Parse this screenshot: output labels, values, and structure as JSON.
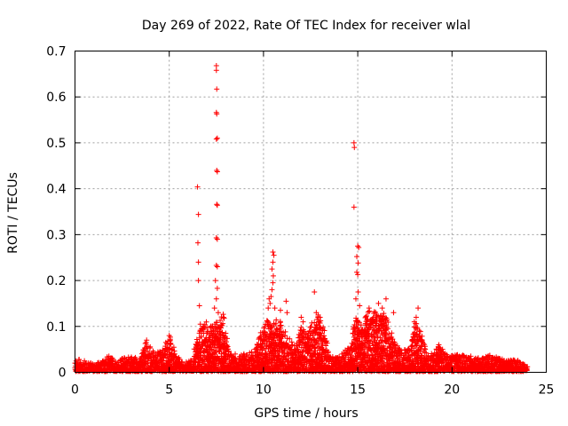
{
  "chart_data": {
    "type": "scatter",
    "title": "Day 269 of 2022, Rate Of TEC Index for receiver wlal",
    "xlabel": "GPS time / hours",
    "ylabel": "ROTI / TECUs",
    "xlim": [
      0,
      25
    ],
    "ylim": [
      0,
      0.7
    ],
    "x_ticks": [
      0,
      5,
      10,
      15,
      20,
      25
    ],
    "x_tick_labels": [
      "0",
      "5",
      "10",
      "15",
      "20",
      "25"
    ],
    "y_ticks": [
      0,
      0.1,
      0.2,
      0.3,
      0.4,
      0.5,
      0.6,
      0.7
    ],
    "y_tick_labels": [
      "0",
      "0.1",
      "0.2",
      "0.3",
      "0.4",
      "0.5",
      "0.6",
      "0.7"
    ],
    "grid": true,
    "marker": "+",
    "color": "#ff0000",
    "series": [
      {
        "name": "ROTI",
        "points": [
          [
            7.5,
            0.668
          ],
          [
            7.5,
            0.658
          ],
          [
            7.52,
            0.617
          ],
          [
            7.5,
            0.566
          ],
          [
            7.52,
            0.563
          ],
          [
            7.55,
            0.51
          ],
          [
            7.5,
            0.508
          ],
          [
            7.52,
            0.44
          ],
          [
            7.55,
            0.437
          ],
          [
            7.52,
            0.366
          ],
          [
            7.55,
            0.364
          ],
          [
            7.5,
            0.293
          ],
          [
            7.55,
            0.29
          ],
          [
            7.5,
            0.233
          ],
          [
            7.55,
            0.23
          ],
          [
            7.45,
            0.2
          ],
          [
            7.55,
            0.183
          ],
          [
            7.5,
            0.16
          ],
          [
            7.4,
            0.14
          ],
          [
            7.6,
            0.13
          ],
          [
            6.5,
            0.404
          ],
          [
            6.55,
            0.344
          ],
          [
            6.52,
            0.282
          ],
          [
            6.55,
            0.24
          ],
          [
            6.55,
            0.2
          ],
          [
            6.6,
            0.145
          ],
          [
            6.65,
            0.105
          ],
          [
            14.8,
            0.5
          ],
          [
            14.82,
            0.49
          ],
          [
            14.8,
            0.36
          ],
          [
            15.0,
            0.275
          ],
          [
            15.05,
            0.272
          ],
          [
            14.95,
            0.252
          ],
          [
            15.02,
            0.238
          ],
          [
            14.95,
            0.218
          ],
          [
            15.0,
            0.213
          ],
          [
            15.02,
            0.175
          ],
          [
            14.9,
            0.16
          ],
          [
            15.1,
            0.145
          ],
          [
            10.5,
            0.262
          ],
          [
            10.55,
            0.255
          ],
          [
            10.5,
            0.24
          ],
          [
            10.45,
            0.225
          ],
          [
            10.52,
            0.21
          ],
          [
            10.5,
            0.195
          ],
          [
            10.45,
            0.18
          ],
          [
            10.4,
            0.165
          ],
          [
            10.3,
            0.16
          ],
          [
            10.35,
            0.15
          ],
          [
            10.25,
            0.14
          ],
          [
            10.6,
            0.14
          ],
          [
            10.9,
            0.135
          ],
          [
            11.2,
            0.155
          ],
          [
            11.25,
            0.13
          ],
          [
            12.0,
            0.12
          ],
          [
            12.1,
            0.11
          ],
          [
            12.7,
            0.175
          ],
          [
            12.8,
            0.13
          ],
          [
            12.9,
            0.125
          ],
          [
            13.0,
            0.12
          ],
          [
            16.5,
            0.16
          ],
          [
            16.9,
            0.13
          ],
          [
            16.3,
            0.14
          ],
          [
            16.1,
            0.15
          ],
          [
            15.6,
            0.14
          ],
          [
            18.2,
            0.14
          ],
          [
            18.1,
            0.12
          ],
          [
            18.0,
            0.11
          ],
          [
            3.8,
            0.07
          ],
          [
            5.0,
            0.08
          ],
          [
            5.05,
            0.072
          ],
          [
            2.5,
            0.03
          ],
          [
            8.5,
            0.04
          ],
          [
            9.0,
            0.035
          ],
          [
            19.3,
            0.06
          ],
          [
            19.5,
            0.05
          ],
          [
            21.0,
            0.035
          ],
          [
            22.5,
            0.03
          ],
          [
            23.5,
            0.025
          ],
          [
            24.0,
            0.012
          ],
          [
            0.1,
            0.02
          ],
          [
            0.5,
            0.025
          ],
          [
            1.2,
            0.02
          ],
          [
            1.8,
            0.035
          ]
        ],
        "envelope": [
          [
            0.0,
            0.02
          ],
          [
            0.2,
            0.028
          ],
          [
            0.6,
            0.02
          ],
          [
            1.0,
            0.018
          ],
          [
            1.5,
            0.025
          ],
          [
            1.8,
            0.038
          ],
          [
            2.2,
            0.02
          ],
          [
            2.6,
            0.03
          ],
          [
            3.0,
            0.035
          ],
          [
            3.5,
            0.03
          ],
          [
            3.8,
            0.07
          ],
          [
            4.2,
            0.04
          ],
          [
            4.6,
            0.045
          ],
          [
            5.0,
            0.085
          ],
          [
            5.3,
            0.045
          ],
          [
            5.6,
            0.025
          ],
          [
            6.0,
            0.02
          ],
          [
            6.3,
            0.05
          ],
          [
            6.6,
            0.09
          ],
          [
            7.0,
            0.11
          ],
          [
            7.3,
            0.1
          ],
          [
            7.6,
            0.11
          ],
          [
            7.9,
            0.13
          ],
          [
            8.2,
            0.04
          ],
          [
            8.6,
            0.03
          ],
          [
            9.0,
            0.04
          ],
          [
            9.5,
            0.045
          ],
          [
            9.9,
            0.09
          ],
          [
            10.2,
            0.12
          ],
          [
            10.5,
            0.11
          ],
          [
            10.8,
            0.12
          ],
          [
            11.1,
            0.09
          ],
          [
            11.4,
            0.07
          ],
          [
            11.7,
            0.06
          ],
          [
            12.0,
            0.1
          ],
          [
            12.3,
            0.08
          ],
          [
            12.6,
            0.12
          ],
          [
            12.9,
            0.12
          ],
          [
            13.2,
            0.1
          ],
          [
            13.5,
            0.04
          ],
          [
            13.9,
            0.03
          ],
          [
            14.3,
            0.045
          ],
          [
            14.6,
            0.06
          ],
          [
            14.9,
            0.12
          ],
          [
            15.2,
            0.1
          ],
          [
            15.5,
            0.13
          ],
          [
            15.8,
            0.14
          ],
          [
            16.1,
            0.12
          ],
          [
            16.4,
            0.13
          ],
          [
            16.7,
            0.1
          ],
          [
            17.0,
            0.06
          ],
          [
            17.4,
            0.045
          ],
          [
            17.8,
            0.06
          ],
          [
            18.1,
            0.12
          ],
          [
            18.4,
            0.08
          ],
          [
            18.7,
            0.04
          ],
          [
            19.0,
            0.04
          ],
          [
            19.3,
            0.06
          ],
          [
            19.6,
            0.04
          ],
          [
            20.0,
            0.035
          ],
          [
            20.5,
            0.04
          ],
          [
            21.0,
            0.03
          ],
          [
            21.5,
            0.03
          ],
          [
            22.0,
            0.035
          ],
          [
            22.5,
            0.03
          ],
          [
            23.0,
            0.025
          ],
          [
            23.5,
            0.025
          ],
          [
            24.0,
            0.012
          ]
        ]
      }
    ]
  }
}
